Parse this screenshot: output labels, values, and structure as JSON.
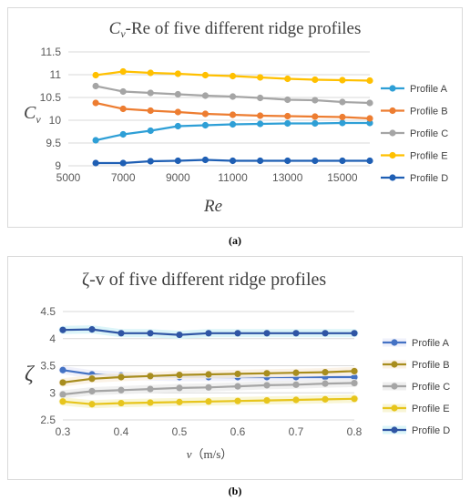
{
  "chart_data": [
    {
      "type": "line",
      "panel_label": "(a)",
      "title": "Cv-Re of five different ridge profiles",
      "title_main": "C",
      "title_sub": "v",
      "title_rest": "-Re of five different ridge profiles",
      "xlabel": "Re",
      "ylabel_main": "C",
      "ylabel_sub": "v",
      "xlim": [
        5000,
        16000
      ],
      "ylim": [
        9,
        11.5
      ],
      "xticks": [
        5000,
        7000,
        9000,
        11000,
        13000,
        15000
      ],
      "yticks": [
        9,
        9.5,
        10,
        10.5,
        11,
        11.5
      ],
      "x": [
        6000,
        7000,
        8000,
        9000,
        10000,
        11000,
        12000,
        13000,
        14000,
        15000,
        16000
      ],
      "grid": "horizontal",
      "legend_position": "right",
      "series": [
        {
          "name": "Profile A",
          "color": "#2e9fd6",
          "values": [
            9.56,
            9.69,
            9.77,
            9.87,
            9.89,
            9.91,
            9.92,
            9.93,
            9.93,
            9.94,
            9.94
          ]
        },
        {
          "name": "Profile B",
          "color": "#ed7d31",
          "values": [
            10.38,
            10.25,
            10.21,
            10.18,
            10.14,
            10.12,
            10.1,
            10.09,
            10.08,
            10.07,
            10.04
          ]
        },
        {
          "name": "Profile C",
          "color": "#a5a5a5",
          "values": [
            10.75,
            10.63,
            10.6,
            10.57,
            10.54,
            10.52,
            10.49,
            10.45,
            10.44,
            10.4,
            10.38
          ]
        },
        {
          "name": "Profile E",
          "color": "#ffc000",
          "values": [
            10.99,
            11.07,
            11.04,
            11.02,
            10.99,
            10.97,
            10.94,
            10.91,
            10.89,
            10.88,
            10.87
          ]
        },
        {
          "name": "Profile D",
          "color": "#1f5fb4",
          "values": [
            9.06,
            9.06,
            9.1,
            9.11,
            9.13,
            9.11,
            9.11,
            9.11,
            9.11,
            9.11,
            9.11
          ]
        }
      ]
    },
    {
      "type": "line",
      "panel_label": "(b)",
      "title": "ζ-v of five different ridge profiles",
      "xlabel": "v（m/s）",
      "xlabel_var": "v",
      "xlabel_unit": "（m/s）",
      "ylabel": "ζ",
      "xlim": [
        0.3,
        0.8
      ],
      "ylim": [
        2.5,
        4.5
      ],
      "xticks": [
        0.3,
        0.4,
        0.5,
        0.6,
        0.7,
        0.8
      ],
      "yticks": [
        2.5,
        3,
        3.5,
        4,
        4.5
      ],
      "x": [
        0.3,
        0.35,
        0.4,
        0.45,
        0.5,
        0.55,
        0.6,
        0.65,
        0.7,
        0.75,
        0.8
      ],
      "grid": "horizontal",
      "legend_position": "right",
      "series": [
        {
          "name": "Profile A",
          "color": "#4472c4",
          "values": [
            3.42,
            3.34,
            3.32,
            3.3,
            3.29,
            3.29,
            3.29,
            3.29,
            3.29,
            3.29,
            3.29
          ]
        },
        {
          "name": "Profile B",
          "color": "#a88d1e",
          "values": [
            3.19,
            3.26,
            3.29,
            3.31,
            3.33,
            3.34,
            3.35,
            3.36,
            3.37,
            3.38,
            3.4
          ]
        },
        {
          "name": "Profile C",
          "color": "#a5a5a5",
          "values": [
            2.97,
            3.03,
            3.05,
            3.07,
            3.09,
            3.1,
            3.12,
            3.14,
            3.15,
            3.17,
            3.18
          ]
        },
        {
          "name": "Profile E",
          "color": "#e7c51c",
          "values": [
            2.84,
            2.79,
            2.81,
            2.82,
            2.83,
            2.84,
            2.85,
            2.86,
            2.87,
            2.88,
            2.89
          ]
        },
        {
          "name": "Profile D",
          "color": "#2f55a4",
          "values": [
            4.16,
            4.17,
            4.1,
            4.1,
            4.07,
            4.1,
            4.1,
            4.1,
            4.1,
            4.1,
            4.1
          ]
        }
      ]
    }
  ]
}
